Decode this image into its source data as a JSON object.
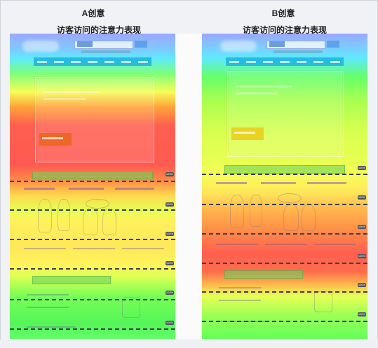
{
  "creative_a": {
    "title": "A创意",
    "subtitle": "访客访问的注意力表现",
    "segments": [
      {
        "badge": "100%"
      },
      {
        "badge": "100%"
      },
      {
        "badge": "100%"
      },
      {
        "badge": "100%"
      },
      {
        "badge": "100%"
      },
      {
        "badge": "100%"
      }
    ]
  },
  "creative_b": {
    "title": "B创意",
    "subtitle": "访客访问的注意力表现",
    "segments": [
      {
        "badge": "100%"
      },
      {
        "badge": "100%"
      },
      {
        "badge": "100%"
      },
      {
        "badge": "100%"
      },
      {
        "badge": "100%"
      },
      {
        "badge": "100%"
      }
    ]
  },
  "colors": {
    "divider": "#3b3f4a",
    "badge_bg": "#4d535d",
    "heat_hot": "#ff5a52",
    "heat_warm": "#ffe85a",
    "heat_cool": "#62ff66",
    "heat_cold": "#9aa8ff"
  }
}
